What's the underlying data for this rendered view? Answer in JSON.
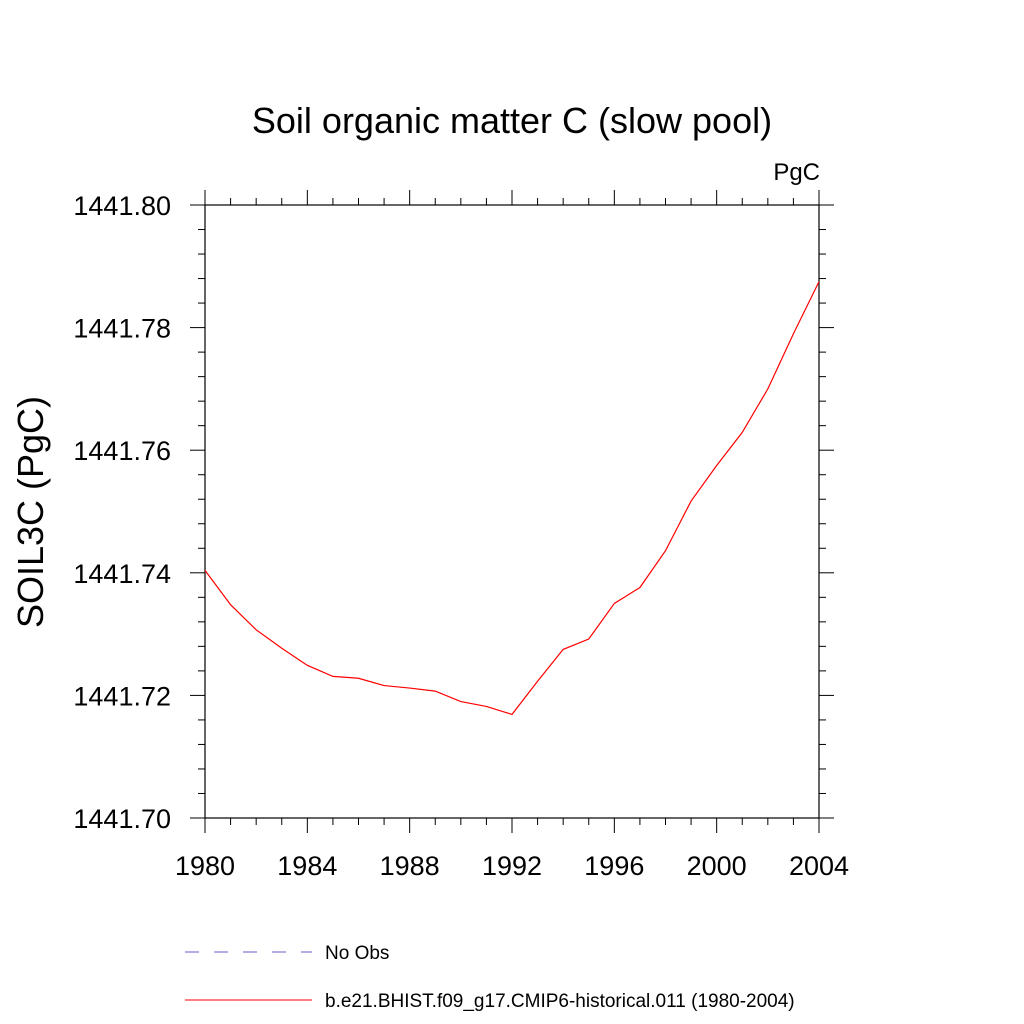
{
  "chart_data": {
    "type": "line",
    "title": "Soil organic matter C (slow pool)",
    "units_label": "PgC",
    "ylabel": "SOIL3C  (PgC)",
    "xlabel": "",
    "xlim": [
      1980,
      2004
    ],
    "ylim": [
      1441.7,
      1441.8
    ],
    "xticks": [
      1980,
      1984,
      1988,
      1992,
      1996,
      2000,
      2004
    ],
    "xtick_labels": [
      "1980",
      "1984",
      "1988",
      "1992",
      "1996",
      "2000",
      "2004"
    ],
    "yticks": [
      1441.7,
      1441.72,
      1441.74,
      1441.76,
      1441.78,
      1441.8
    ],
    "ytick_labels": [
      "1441.70",
      "1441.72",
      "1441.74",
      "1441.76",
      "1441.78",
      "1441.80"
    ],
    "grid": false,
    "legend_placement": "bottom",
    "series": [
      {
        "name": "No Obs",
        "style": "dashed",
        "color": "#6a5acd",
        "x": [],
        "y": []
      },
      {
        "name": "b.e21.BHIST.f09_g17.CMIP6-historical.011 (1980-2004)",
        "style": "solid",
        "color": "#ff0000",
        "x": [
          1980,
          1981,
          1982,
          1983,
          1984,
          1985,
          1986,
          1987,
          1988,
          1989,
          1990,
          1991,
          1992,
          1993,
          1994,
          1995,
          1996,
          1997,
          1998,
          1999,
          2000,
          2001,
          2002,
          2003,
          2004
        ],
        "y": [
          1441.7404,
          1441.7348,
          1441.7307,
          1441.7277,
          1441.7249,
          1441.7231,
          1441.7228,
          1441.7216,
          1441.7212,
          1441.7207,
          1441.719,
          1441.7182,
          1441.7169,
          1441.7223,
          1441.7275,
          1441.7292,
          1441.735,
          1441.7376,
          1441.7436,
          1441.7517,
          1441.7575,
          1441.7629,
          1441.77,
          1441.779,
          1441.7875
        ]
      }
    ]
  }
}
